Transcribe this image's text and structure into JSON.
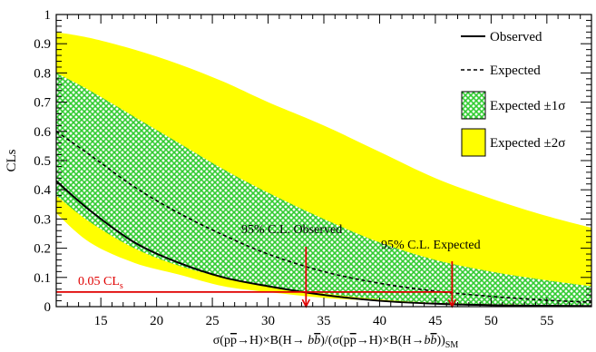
{
  "chart_data": {
    "type": "area",
    "title": "",
    "ylabel": "CLs",
    "xlabel": {
      "parts": [
        {
          "t": "σ(p",
          "s": "normal"
        },
        {
          "t": "p",
          "s": "over"
        },
        {
          "t": "→H)×B(H→ ",
          "s": "normal"
        },
        {
          "t": "b",
          "s": "italic"
        },
        {
          "t": "b",
          "s": "italic-over"
        },
        {
          "t": ")/(σ(p",
          "s": "normal"
        },
        {
          "t": "p",
          "s": "over"
        },
        {
          "t": "→H)×B(H→",
          "s": "normal"
        },
        {
          "t": "b",
          "s": "italic"
        },
        {
          "t": "b",
          "s": "italic-over"
        },
        {
          "t": "))",
          "s": "normal"
        },
        {
          "t": "SM",
          "s": "sub"
        }
      ]
    },
    "xlim": [
      11,
      59
    ],
    "ylim": [
      0,
      1
    ],
    "xticks": [
      15,
      20,
      25,
      30,
      35,
      40,
      45,
      50,
      55
    ],
    "yticks": [
      0,
      0.1,
      0.2,
      0.3,
      0.4,
      0.5,
      0.6,
      0.7,
      0.8,
      0.9,
      1
    ],
    "grid": false,
    "legend_position": "top-right",
    "legend": [
      {
        "label": "Observed",
        "style": "solid-line"
      },
      {
        "label": "Expected",
        "style": "dashed-line"
      },
      {
        "label": "Expected ±1σ",
        "style": "green-hatch"
      },
      {
        "label": "Expected ±2σ",
        "style": "yellow-fill"
      }
    ],
    "series": [
      {
        "key": "band_2sigma",
        "x": [
          11,
          14,
          18,
          22,
          26,
          30,
          35,
          40,
          45,
          50,
          55,
          59
        ],
        "upper": [
          0.94,
          0.92,
          0.88,
          0.83,
          0.77,
          0.7,
          0.62,
          0.53,
          0.44,
          0.37,
          0.31,
          0.27
        ],
        "lower": [
          0.32,
          0.22,
          0.15,
          0.11,
          0.07,
          0.05,
          0.03,
          0.02,
          0.01,
          0.005,
          0.003,
          0.002
        ]
      },
      {
        "key": "band_1sigma",
        "x": [
          11,
          14,
          18,
          22,
          26,
          30,
          35,
          40,
          45,
          50,
          55,
          59
        ],
        "upper": [
          0.8,
          0.74,
          0.65,
          0.56,
          0.47,
          0.39,
          0.3,
          0.22,
          0.16,
          0.12,
          0.09,
          0.07
        ],
        "lower": [
          0.38,
          0.29,
          0.2,
          0.14,
          0.1,
          0.07,
          0.045,
          0.025,
          0.013,
          0.008,
          0.005,
          0.003
        ]
      },
      {
        "key": "expected",
        "x": [
          11,
          14,
          18,
          22,
          26,
          30,
          35,
          40,
          45,
          50,
          55,
          59
        ],
        "values": [
          0.6,
          0.52,
          0.41,
          0.32,
          0.245,
          0.18,
          0.12,
          0.08,
          0.053,
          0.035,
          0.022,
          0.015
        ]
      },
      {
        "key": "observed",
        "x": [
          11,
          14,
          18,
          22,
          26,
          30,
          35,
          40,
          45,
          50,
          55,
          59
        ],
        "values": [
          0.43,
          0.33,
          0.22,
          0.15,
          0.1,
          0.07,
          0.04,
          0.02,
          0.01,
          0.005,
          0.003,
          0.002
        ]
      }
    ],
    "cls_line": {
      "y": 0.05,
      "label": "0.05 CL",
      "label_sub": "s"
    },
    "limits": [
      {
        "label": "95% C.L. Observed",
        "x": 33.4
      },
      {
        "label": "95% C.L. Expected",
        "x": 46.5
      }
    ],
    "colors": {
      "band_2sigma": "#ffff00",
      "band_1sigma": "#33cc33",
      "hatch_bg": "#ffffff",
      "limit_lines": "#e00000",
      "curves": "#000000"
    }
  }
}
